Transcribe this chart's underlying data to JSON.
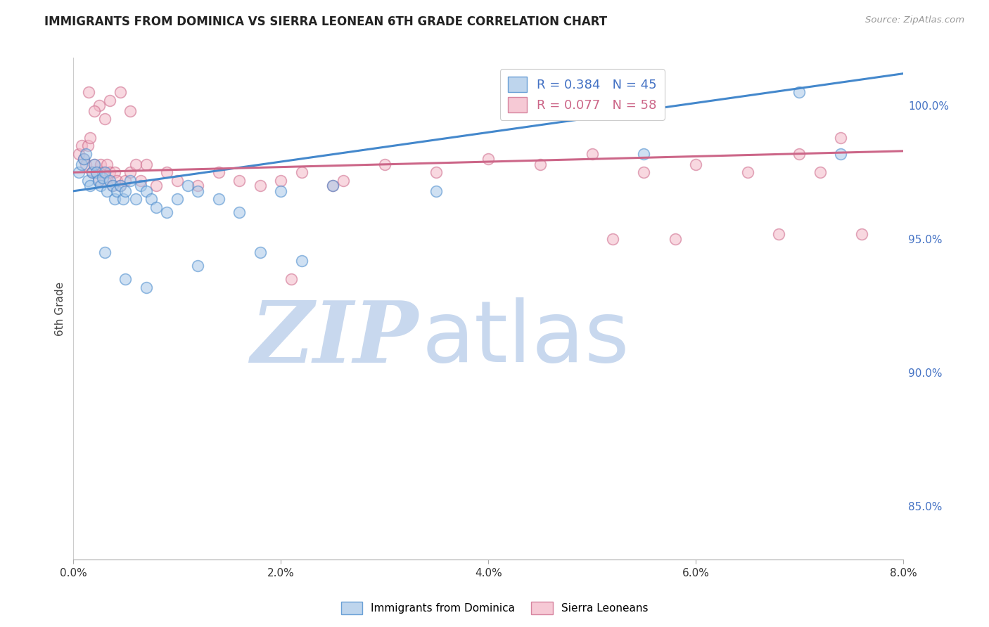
{
  "title": "IMMIGRANTS FROM DOMINICA VS SIERRA LEONEAN 6TH GRADE CORRELATION CHART",
  "source": "Source: ZipAtlas.com",
  "xlabel_vals": [
    0.0,
    2.0,
    4.0,
    6.0,
    8.0
  ],
  "ylabel": "6th Grade",
  "ylabel_vals": [
    85.0,
    90.0,
    95.0,
    100.0
  ],
  "xlim": [
    0.0,
    8.0
  ],
  "ylim": [
    83.0,
    101.8
  ],
  "blue_color": "#a8c8e8",
  "pink_color": "#f4b8c8",
  "blue_line_color": "#4488cc",
  "pink_line_color": "#cc6688",
  "legend_blue_label": "R = 0.384   N = 45",
  "legend_pink_label": "R = 0.077   N = 58",
  "dominica_label": "Immigrants from Dominica",
  "sierra_label": "Sierra Leoneans",
  "blue_x": [
    0.05,
    0.08,
    0.1,
    0.12,
    0.14,
    0.16,
    0.18,
    0.2,
    0.22,
    0.24,
    0.26,
    0.28,
    0.3,
    0.32,
    0.35,
    0.38,
    0.4,
    0.42,
    0.45,
    0.48,
    0.5,
    0.55,
    0.6,
    0.65,
    0.7,
    0.75,
    0.8,
    0.9,
    1.0,
    1.1,
    1.2,
    1.4,
    1.6,
    1.8,
    2.2,
    2.5,
    3.5,
    5.5,
    7.0,
    7.4,
    0.3,
    0.5,
    0.7,
    1.2,
    2.0
  ],
  "blue_y": [
    97.5,
    97.8,
    98.0,
    98.2,
    97.2,
    97.0,
    97.5,
    97.8,
    97.5,
    97.2,
    97.0,
    97.3,
    97.5,
    96.8,
    97.2,
    97.0,
    96.5,
    96.8,
    97.0,
    96.5,
    96.8,
    97.2,
    96.5,
    97.0,
    96.8,
    96.5,
    96.2,
    96.0,
    96.5,
    97.0,
    96.8,
    96.5,
    96.0,
    94.5,
    94.2,
    97.0,
    96.8,
    98.2,
    100.5,
    98.2,
    94.5,
    93.5,
    93.2,
    94.0,
    96.8
  ],
  "pink_x": [
    0.05,
    0.08,
    0.1,
    0.12,
    0.14,
    0.16,
    0.18,
    0.2,
    0.22,
    0.24,
    0.26,
    0.28,
    0.3,
    0.32,
    0.35,
    0.38,
    0.4,
    0.42,
    0.45,
    0.5,
    0.55,
    0.6,
    0.65,
    0.7,
    0.8,
    0.9,
    1.0,
    1.2,
    1.4,
    1.6,
    1.8,
    2.0,
    2.2,
    2.5,
    3.0,
    3.5,
    4.0,
    4.5,
    5.0,
    5.5,
    6.0,
    6.5,
    7.0,
    7.2,
    7.4,
    5.8,
    6.8,
    2.6,
    0.35,
    0.45,
    0.55,
    0.25,
    0.3,
    0.2,
    0.15,
    2.1,
    5.2,
    7.6
  ],
  "pink_y": [
    98.2,
    98.5,
    98.0,
    97.8,
    98.5,
    98.8,
    97.5,
    97.8,
    97.5,
    97.2,
    97.8,
    97.5,
    97.2,
    97.8,
    97.5,
    97.0,
    97.5,
    97.2,
    97.0,
    97.2,
    97.5,
    97.8,
    97.2,
    97.8,
    97.0,
    97.5,
    97.2,
    97.0,
    97.5,
    97.2,
    97.0,
    97.2,
    97.5,
    97.0,
    97.8,
    97.5,
    98.0,
    97.8,
    98.2,
    97.5,
    97.8,
    97.5,
    98.2,
    97.5,
    98.8,
    95.0,
    95.2,
    97.2,
    100.2,
    100.5,
    99.8,
    100.0,
    99.5,
    99.8,
    100.5,
    93.5,
    95.0,
    95.2
  ],
  "blue_trend_x": [
    0.0,
    8.0
  ],
  "blue_trend_y": [
    96.8,
    101.2
  ],
  "pink_trend_x": [
    0.0,
    8.0
  ],
  "pink_trend_y": [
    97.5,
    98.3
  ],
  "watermark_zip": "ZIP",
  "watermark_atlas": "atlas",
  "watermark_color": "#c8d8ee",
  "background_color": "#ffffff",
  "grid_color": "#cccccc"
}
